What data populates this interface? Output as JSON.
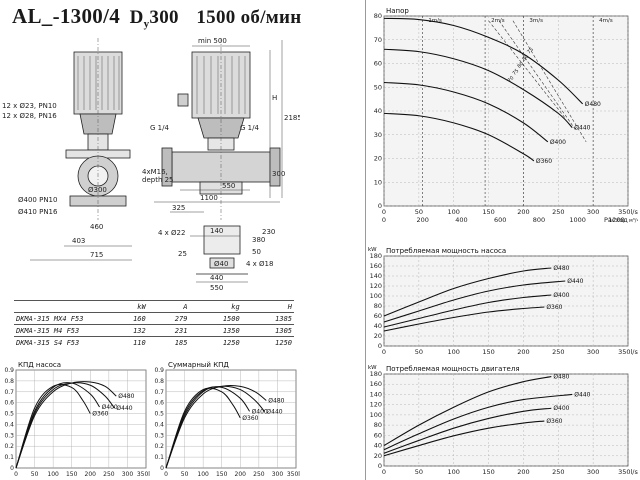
{
  "header": {
    "model": "AL_-1300/4",
    "d_label": "D",
    "d_sub": "y",
    "d_value": "300",
    "speed": "1500 об/мин"
  },
  "drawing_dims": {
    "min_width": "min 500",
    "flange_pn10": "12 x Ø23, PN10",
    "flange_pn16": "12 x Ø28, PN16",
    "h": "H",
    "h_2185": "2185",
    "h_300": "300",
    "g_left": "G 1/4",
    "g_right": "G 1/4",
    "bolts": "4xM16,",
    "bolt_depth": "depth 25",
    "d300": "Ø300",
    "d400": "Ø400 PN10",
    "d410": "Ø410 PN16",
    "w460": "460",
    "w403": "403",
    "w715": "715",
    "w550a": "550",
    "w1100": "1100",
    "w325": "325",
    "holes22": "4 x Ø22",
    "w140": "140",
    "w25": "25",
    "d40": "Ø40",
    "w440": "440",
    "w550b": "550",
    "holes18": "4 x Ø18",
    "h380": "380",
    "h230": "230",
    "h50": "50"
  },
  "spec_table": {
    "headers": [
      "",
      "kW",
      "A",
      "kg",
      "H"
    ],
    "rows": [
      [
        "DKMA-315 MX4 F53",
        "160",
        "279",
        "1500",
        "1385"
      ],
      [
        "DKMA-315 M4 F53",
        "132",
        "231",
        "1350",
        "1305"
      ],
      [
        "DKMA-315 S4 F53",
        "110",
        "185",
        "1250",
        "1250"
      ]
    ]
  },
  "chart_data": [
    {
      "id": "head",
      "type": "line",
      "title": "Напор",
      "xlabel": "Расход",
      "xunit2": "м³/ч",
      "xlim": [
        0,
        350
      ],
      "ylim": [
        0,
        80
      ],
      "xticks": [
        0,
        50,
        100,
        150,
        200,
        250,
        300,
        350
      ],
      "xticklabels": [
        "0",
        "50",
        "100",
        "150",
        "200",
        "250",
        "300",
        "350l/s"
      ],
      "x2ticks": [
        0,
        200,
        400,
        600,
        800,
        1000,
        1200
      ],
      "x2ticklabels": [
        "0",
        "200",
        "400",
        "600",
        "800",
        "1000",
        "1200"
      ],
      "yticks": [
        0,
        10,
        20,
        30,
        40,
        50,
        60,
        70,
        80
      ],
      "yticklabels": [
        "0",
        "10",
        "20",
        "30",
        "40",
        "50",
        "60",
        "70",
        "80"
      ],
      "series": [
        {
          "name": "Ø480",
          "x": [
            0,
            50,
            100,
            150,
            200,
            250,
            285
          ],
          "y": [
            79,
            78.5,
            76,
            71,
            64,
            53,
            43
          ]
        },
        {
          "name": "Ø440",
          "x": [
            0,
            50,
            100,
            150,
            200,
            250,
            270
          ],
          "y": [
            66,
            65,
            62,
            57,
            49,
            39,
            33
          ]
        },
        {
          "name": "Ø400",
          "x": [
            0,
            50,
            100,
            150,
            200,
            235
          ],
          "y": [
            52,
            51,
            48,
            43,
            35,
            27
          ]
        },
        {
          "name": "Ø360",
          "x": [
            0,
            50,
            100,
            150,
            200,
            215
          ],
          "y": [
            39,
            38,
            35,
            30,
            22,
            19
          ]
        }
      ],
      "velocity_labels": [
        "1m/s",
        "2m/s",
        "3m/s",
        "4m/s"
      ],
      "efficiency_labels": [
        "70",
        "75",
        "80",
        "80",
        "75"
      ]
    },
    {
      "id": "pump_power",
      "type": "line",
      "title": "Потребляемая мощность насоса",
      "yunit": "kW",
      "xlim": [
        0,
        350
      ],
      "ylim": [
        0,
        180
      ],
      "xticks": [
        0,
        50,
        100,
        150,
        200,
        250,
        300,
        350
      ],
      "xticklabels": [
        "0",
        "50",
        "100",
        "150",
        "200",
        "250",
        "300",
        "350l/s"
      ],
      "yticks": [
        0,
        20,
        40,
        60,
        80,
        100,
        120,
        140,
        160,
        180
      ],
      "yticklabels": [
        "0",
        "20",
        "40",
        "60",
        "80",
        "100",
        "120",
        "140",
        "160",
        "180"
      ],
      "series": [
        {
          "name": "Ø480",
          "x": [
            0,
            50,
            100,
            150,
            200,
            240
          ],
          "y": [
            60,
            88,
            115,
            135,
            150,
            156
          ]
        },
        {
          "name": "Ø440",
          "x": [
            0,
            50,
            100,
            150,
            200,
            260
          ],
          "y": [
            48,
            70,
            92,
            110,
            122,
            130
          ]
        },
        {
          "name": "Ø400",
          "x": [
            0,
            50,
            100,
            150,
            200,
            240
          ],
          "y": [
            38,
            55,
            72,
            87,
            97,
            102
          ]
        },
        {
          "name": "Ø360",
          "x": [
            0,
            50,
            100,
            150,
            200,
            230
          ],
          "y": [
            30,
            44,
            57,
            68,
            75,
            78
          ]
        }
      ]
    },
    {
      "id": "motor_power",
      "type": "line",
      "title": "Потребляемая мощность двигателя",
      "yunit": "kW",
      "xlim": [
        0,
        350
      ],
      "ylim": [
        0,
        180
      ],
      "xticks": [
        0,
        50,
        100,
        150,
        200,
        250,
        300,
        350
      ],
      "xticklabels": [
        "0",
        "50",
        "100",
        "150",
        "200",
        "250",
        "300",
        "350l/s"
      ],
      "yticks": [
        0,
        20,
        40,
        60,
        80,
        100,
        120,
        140,
        160,
        180
      ],
      "yticklabels": [
        "0",
        "20",
        "40",
        "60",
        "80",
        "100",
        "120",
        "140",
        "160",
        "180"
      ],
      "series": [
        {
          "name": "Ø480",
          "x": [
            0,
            50,
            100,
            150,
            200,
            240
          ],
          "y": [
            40,
            80,
            115,
            145,
            165,
            175
          ]
        },
        {
          "name": "Ø440",
          "x": [
            0,
            50,
            100,
            150,
            200,
            270
          ],
          "y": [
            32,
            63,
            92,
            115,
            130,
            140
          ]
        },
        {
          "name": "Ø400",
          "x": [
            0,
            50,
            100,
            150,
            200,
            240
          ],
          "y": [
            25,
            50,
            74,
            93,
            107,
            113
          ]
        },
        {
          "name": "Ø360",
          "x": [
            0,
            50,
            100,
            150,
            200,
            230
          ],
          "y": [
            20,
            40,
            59,
            74,
            84,
            88
          ]
        }
      ]
    },
    {
      "id": "pump_eff",
      "type": "line",
      "title": "КПД насоса",
      "xlim": [
        0,
        350
      ],
      "ylim": [
        0,
        0.9
      ],
      "xticks": [
        0,
        50,
        100,
        150,
        200,
        250,
        300,
        350
      ],
      "xticklabels": [
        "0",
        "50",
        "100",
        "150",
        "200",
        "250",
        "300",
        "350l/s"
      ],
      "yticks": [
        0,
        0.1,
        0.2,
        0.3,
        0.4,
        0.5,
        0.6,
        0.7,
        0.8,
        0.9
      ],
      "yticklabels": [
        "0",
        "0.1",
        "0.2",
        "0.3",
        "0.4",
        "0.5",
        "0.6",
        "0.7",
        "0.8",
        "0.9"
      ],
      "series": [
        {
          "name": "Ø480",
          "x": [
            0,
            50,
            100,
            150,
            200,
            240,
            270
          ],
          "y": [
            0,
            0.48,
            0.7,
            0.78,
            0.79,
            0.75,
            0.66
          ]
        },
        {
          "name": "Ø440",
          "x": [
            0,
            50,
            100,
            150,
            200,
            240,
            265
          ],
          "y": [
            0,
            0.5,
            0.72,
            0.78,
            0.76,
            0.66,
            0.55
          ]
        },
        {
          "name": "Ø400",
          "x": [
            0,
            50,
            100,
            150,
            200,
            225
          ],
          "y": [
            0,
            0.52,
            0.74,
            0.78,
            0.68,
            0.56
          ]
        },
        {
          "name": "Ø360",
          "x": [
            0,
            50,
            100,
            150,
            180,
            200
          ],
          "y": [
            0,
            0.55,
            0.75,
            0.74,
            0.62,
            0.5
          ]
        }
      ]
    },
    {
      "id": "total_eff",
      "type": "line",
      "title": "Суммарный КПД",
      "xlim": [
        0,
        350
      ],
      "ylim": [
        0,
        0.9
      ],
      "xticks": [
        0,
        50,
        100,
        150,
        200,
        250,
        300,
        350
      ],
      "xticklabels": [
        "0",
        "50",
        "100",
        "150",
        "200",
        "250",
        "300",
        "350l/s"
      ],
      "yticks": [
        0,
        0.1,
        0.2,
        0.3,
        0.4,
        0.5,
        0.6,
        0.7,
        0.8,
        0.9
      ],
      "yticklabels": [
        "0",
        "0.1",
        "0.2",
        "0.3",
        "0.4",
        "0.5",
        "0.6",
        "0.7",
        "0.8",
        "0.9"
      ],
      "series": [
        {
          "name": "Ø480",
          "x": [
            0,
            50,
            100,
            150,
            200,
            240,
            270
          ],
          "y": [
            0,
            0.46,
            0.68,
            0.75,
            0.75,
            0.7,
            0.62
          ]
        },
        {
          "name": "Ø440",
          "x": [
            0,
            50,
            100,
            150,
            200,
            240,
            265
          ],
          "y": [
            0,
            0.48,
            0.7,
            0.75,
            0.72,
            0.62,
            0.52
          ]
        },
        {
          "name": "Ø400",
          "x": [
            0,
            50,
            100,
            150,
            200,
            225
          ],
          "y": [
            0,
            0.5,
            0.71,
            0.74,
            0.64,
            0.52
          ]
        },
        {
          "name": "Ø360",
          "x": [
            0,
            50,
            100,
            150,
            180,
            200
          ],
          "y": [
            0,
            0.52,
            0.72,
            0.7,
            0.58,
            0.46
          ]
        }
      ]
    }
  ]
}
